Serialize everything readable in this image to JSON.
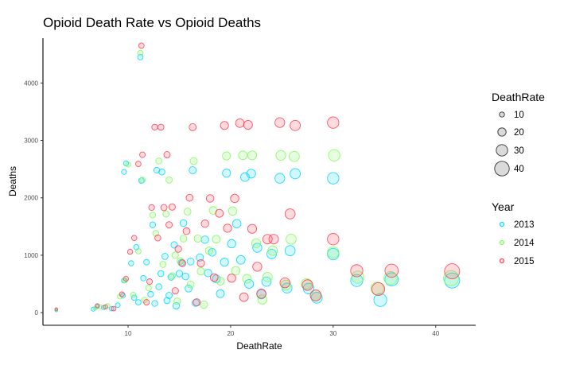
{
  "chart_data": {
    "type": "scatter",
    "title": "Opioid Death Rate vs Opioid Deaths",
    "xlabel": "DeathRate",
    "ylabel": "Deaths",
    "xlim": [
      1.7,
      43.9
    ],
    "ylim": [
      -220,
      4780
    ],
    "xticks": [
      10,
      20,
      30,
      40
    ],
    "yticks": [
      0,
      1000,
      2000,
      3000,
      4000
    ],
    "grid": false,
    "size_legend": {
      "title": "DeathRate",
      "values": [
        10,
        20,
        30,
        40
      ]
    },
    "color_legend": {
      "title": "Year",
      "placement": "right"
    },
    "colors": {
      "2013": "#00D5FF",
      "2014": "#7CFC5A",
      "2015": "#FF3A4E",
      "fill_alpha": 0.18
    },
    "series": [
      {
        "name": "2013",
        "points": [
          [
            3,
            40
          ],
          [
            6.6,
            60
          ],
          [
            7,
            110
          ],
          [
            7.6,
            90
          ],
          [
            8.4,
            70
          ],
          [
            9,
            130
          ],
          [
            9.5,
            300
          ],
          [
            9.6,
            560
          ],
          [
            9.6,
            2450
          ],
          [
            9.8,
            2600
          ],
          [
            10.3,
            860
          ],
          [
            10.6,
            260
          ],
          [
            10.8,
            1140
          ],
          [
            11,
            180
          ],
          [
            11.2,
            4450
          ],
          [
            11.3,
            2300
          ],
          [
            11.5,
            600
          ],
          [
            11.8,
            880
          ],
          [
            12.2,
            320
          ],
          [
            12.4,
            1530
          ],
          [
            12.6,
            160
          ],
          [
            12.8,
            2480
          ],
          [
            13,
            450
          ],
          [
            13.2,
            680
          ],
          [
            13.3,
            2450
          ],
          [
            13.6,
            980
          ],
          [
            13.8,
            210
          ],
          [
            14,
            300
          ],
          [
            14.2,
            620
          ],
          [
            14.5,
            1180
          ],
          [
            14.7,
            120
          ],
          [
            15,
            680
          ],
          [
            15.2,
            870
          ],
          [
            15.4,
            1560
          ],
          [
            15.6,
            630
          ],
          [
            15.9,
            420
          ],
          [
            16.1,
            890
          ],
          [
            16.3,
            2480
          ],
          [
            16.6,
            170
          ],
          [
            17,
            960
          ],
          [
            17.5,
            1270
          ],
          [
            17.8,
            690
          ],
          [
            18.2,
            1050
          ],
          [
            18.6,
            590
          ],
          [
            19,
            330
          ],
          [
            19.4,
            880
          ],
          [
            19.6,
            2430
          ],
          [
            20.1,
            1200
          ],
          [
            20.6,
            1550
          ],
          [
            21,
            920
          ],
          [
            21.4,
            2360
          ],
          [
            21.8,
            500
          ],
          [
            22,
            2420
          ],
          [
            22.6,
            1130
          ],
          [
            23,
            320
          ],
          [
            23.5,
            540
          ],
          [
            24,
            1020
          ],
          [
            24.8,
            2340
          ],
          [
            25.5,
            430
          ],
          [
            25.8,
            1080
          ],
          [
            26.3,
            2420
          ],
          [
            27.6,
            420
          ],
          [
            28.4,
            260
          ],
          [
            30,
            2340
          ],
          [
            30,
            1020
          ],
          [
            32.3,
            560
          ],
          [
            34.6,
            220
          ],
          [
            35.7,
            580
          ],
          [
            41.6,
            560
          ]
        ]
      },
      {
        "name": "2014",
        "points": [
          [
            3,
            50
          ],
          [
            6.8,
            80
          ],
          [
            7.3,
            100
          ],
          [
            8,
            120
          ],
          [
            9.2,
            280
          ],
          [
            9.7,
            560
          ],
          [
            10,
            2580
          ],
          [
            10.5,
            310
          ],
          [
            11,
            1070
          ],
          [
            11.2,
            4520
          ],
          [
            11.4,
            2310
          ],
          [
            11.6,
            220
          ],
          [
            12,
            430
          ],
          [
            12.4,
            1700
          ],
          [
            12.7,
            1380
          ],
          [
            13,
            2640
          ],
          [
            13.4,
            840
          ],
          [
            13.7,
            1720
          ],
          [
            14,
            2310
          ],
          [
            14.3,
            640
          ],
          [
            14.6,
            1000
          ],
          [
            14.8,
            200
          ],
          [
            15.1,
            900
          ],
          [
            15.4,
            1290
          ],
          [
            15.8,
            1760
          ],
          [
            16.1,
            490
          ],
          [
            16.4,
            2640
          ],
          [
            16.8,
            1290
          ],
          [
            17.1,
            720
          ],
          [
            17.4,
            140
          ],
          [
            17.9,
            1080
          ],
          [
            18.3,
            1780
          ],
          [
            18.6,
            1280
          ],
          [
            19,
            550
          ],
          [
            19.6,
            2730
          ],
          [
            20.2,
            1770
          ],
          [
            20.5,
            730
          ],
          [
            21.2,
            2740
          ],
          [
            21.6,
            590
          ],
          [
            22.1,
            2740
          ],
          [
            22.5,
            1210
          ],
          [
            23.1,
            230
          ],
          [
            23.6,
            620
          ],
          [
            24.1,
            1080
          ],
          [
            24.9,
            2740
          ],
          [
            25.4,
            480
          ],
          [
            25.9,
            1280
          ],
          [
            26.2,
            2720
          ],
          [
            27.4,
            500
          ],
          [
            28.3,
            300
          ],
          [
            30.1,
            2740
          ],
          [
            30,
            1050
          ],
          [
            32.4,
            620
          ],
          [
            34.3,
            420
          ],
          [
            35.6,
            600
          ],
          [
            41.5,
            600
          ]
        ]
      },
      {
        "name": "2015",
        "points": [
          [
            3,
            60
          ],
          [
            7,
            120
          ],
          [
            7.8,
            100
          ],
          [
            8.6,
            70
          ],
          [
            9.4,
            320
          ],
          [
            9.8,
            590
          ],
          [
            10.2,
            1060
          ],
          [
            10.6,
            1300
          ],
          [
            11,
            2590
          ],
          [
            11.3,
            4650
          ],
          [
            11.4,
            2750
          ],
          [
            11.8,
            180
          ],
          [
            12.1,
            540
          ],
          [
            12.3,
            1830
          ],
          [
            12.6,
            3230
          ],
          [
            12.9,
            1300
          ],
          [
            13.2,
            3230
          ],
          [
            13.5,
            1830
          ],
          [
            13.8,
            2750
          ],
          [
            14,
            1530
          ],
          [
            14.3,
            1840
          ],
          [
            14.6,
            380
          ],
          [
            14.9,
            1110
          ],
          [
            15.3,
            860
          ],
          [
            15.7,
            1420
          ],
          [
            16,
            2000
          ],
          [
            16.3,
            3230
          ],
          [
            16.7,
            180
          ],
          [
            17.1,
            860
          ],
          [
            17.5,
            1550
          ],
          [
            18,
            1990
          ],
          [
            18.4,
            610
          ],
          [
            18.9,
            1730
          ],
          [
            19.4,
            3260
          ],
          [
            19.7,
            1470
          ],
          [
            20.1,
            600
          ],
          [
            20.4,
            1990
          ],
          [
            20.9,
            3300
          ],
          [
            21.3,
            270
          ],
          [
            21.7,
            3270
          ],
          [
            22.1,
            1460
          ],
          [
            22.6,
            800
          ],
          [
            23,
            330
          ],
          [
            23.6,
            1280
          ],
          [
            24.2,
            1280
          ],
          [
            24.8,
            3310
          ],
          [
            25.3,
            520
          ],
          [
            25.8,
            1720
          ],
          [
            26.3,
            3260
          ],
          [
            27.5,
            480
          ],
          [
            28.3,
            300
          ],
          [
            30,
            3310
          ],
          [
            30,
            1280
          ],
          [
            32.3,
            730
          ],
          [
            34.4,
            410
          ],
          [
            35.7,
            730
          ],
          [
            41.6,
            720
          ]
        ]
      }
    ]
  },
  "legend_items": [
    {
      "label": "10"
    },
    {
      "label": "20"
    },
    {
      "label": "30"
    },
    {
      "label": "40"
    }
  ],
  "year_items": [
    {
      "label": "2013"
    },
    {
      "label": "2014"
    },
    {
      "label": "2015"
    }
  ]
}
